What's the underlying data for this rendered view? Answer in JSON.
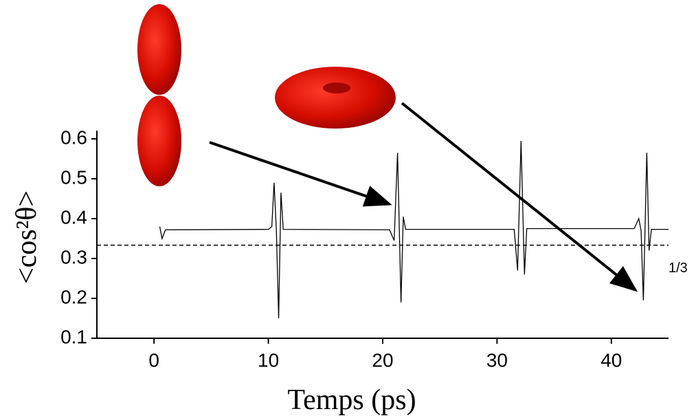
{
  "chart_data": {
    "type": "line",
    "x_label": "Temps (ps)",
    "y_label": "<cos²θ>",
    "x": [
      0.5,
      0.7,
      1.0,
      10.0,
      10.3,
      10.5,
      10.7,
      10.9,
      11.1,
      11.3,
      20.6,
      21.0,
      21.3,
      21.6,
      21.8,
      22.0,
      31.5,
      31.8,
      32.1,
      32.4,
      32.6,
      42.0,
      42.4,
      42.6,
      42.8,
      43.1,
      43.3,
      43.5,
      45.0
    ],
    "series": [
      {
        "color": "#000000",
        "values": [
          0.38,
          0.35,
          0.372,
          0.373,
          0.38,
          0.49,
          0.37,
          0.15,
          0.465,
          0.373,
          0.372,
          0.345,
          0.565,
          0.19,
          0.405,
          0.373,
          0.373,
          0.27,
          0.595,
          0.26,
          0.375,
          0.375,
          0.4,
          0.37,
          0.195,
          0.565,
          0.32,
          0.373,
          0.373
        ]
      }
    ],
    "xlim": [
      -5,
      45
    ],
    "xticks": [
      0,
      10,
      20,
      30,
      40
    ],
    "ylim": [
      0.1,
      0.6
    ],
    "yticks": [
      0.1,
      0.2,
      0.3,
      0.4,
      0.5,
      0.6
    ],
    "reference_line": {
      "value": 0.3333,
      "label": "1/3"
    }
  }
}
